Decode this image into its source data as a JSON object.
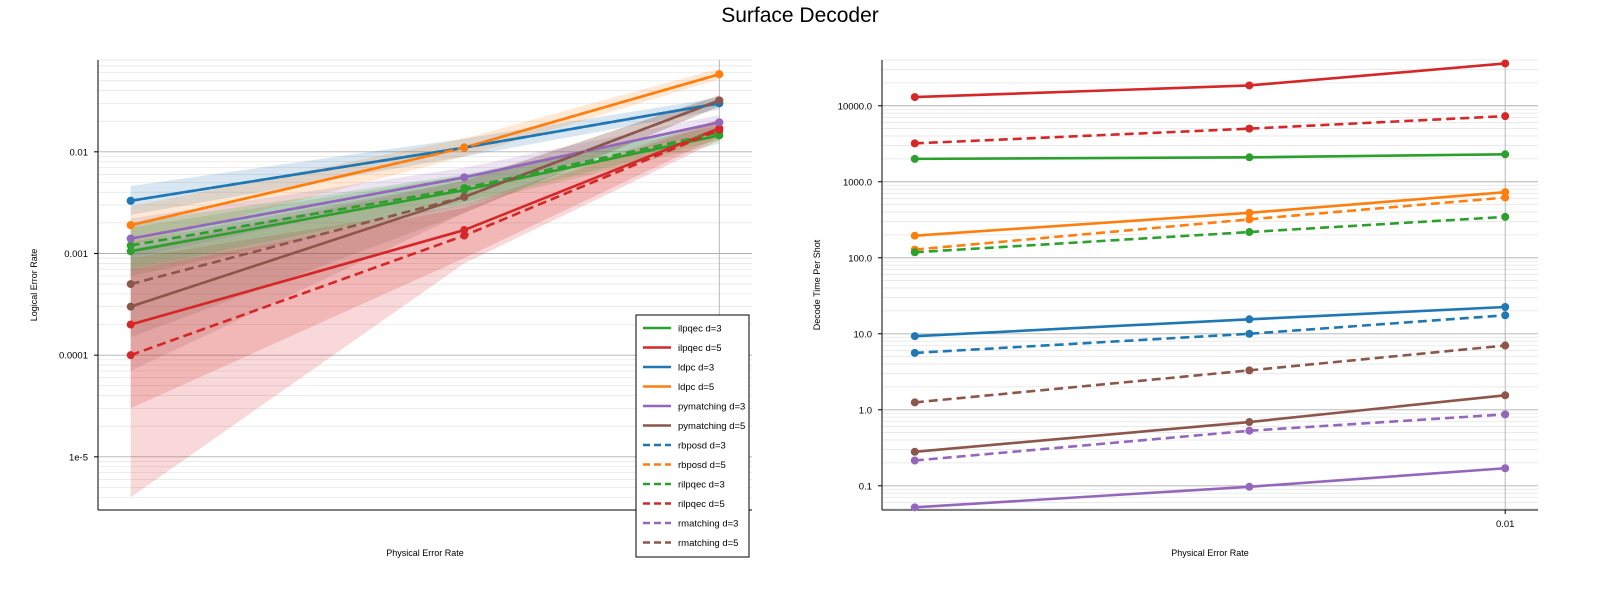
{
  "figure_title": "Surface Decoder",
  "colors": {
    "ilpqec": "#2ca02c",
    "ldpc": "#1f77b4",
    "ldpc_d5": "#ff7f0e",
    "ilpqec_d5": "#d62728",
    "pymatching": "#9467bd",
    "pymatching_d5": "#8c564b"
  },
  "chart_data": [
    {
      "type": "line",
      "title": "",
      "xlabel": "Physical Error Rate",
      "ylabel": "Logical Error Rate",
      "x": [
        0.005,
        0.007,
        0.01
      ],
      "x_tick_labels": [
        "0.01"
      ],
      "x_tick_values": [
        0.01
      ],
      "y_scale": "log",
      "ylim": [
        3e-06,
        0.08
      ],
      "y_tick_values": [
        0.01,
        0.001,
        0.0001,
        1e-05
      ],
      "y_tick_labels": [
        "0.01",
        "0.001",
        "0.0001",
        "1e-5"
      ],
      "grid": true,
      "legend_position": "lower-right",
      "series": [
        {
          "name": "ilpqec d=3",
          "color": "#2ca02c",
          "dash": false,
          "values": [
            0.00105,
            0.0042,
            0.0145
          ],
          "band": [
            [
              0.0006,
              0.0018
            ],
            [
              0.003,
              0.0058
            ],
            [
              0.012,
              0.018
            ]
          ]
        },
        {
          "name": "ilpqec d=5",
          "color": "#d62728",
          "dash": false,
          "values": [
            0.0002,
            0.0017,
            0.017
          ],
          "band": [
            [
              3e-05,
              0.0009
            ],
            [
              0.0009,
              0.003
            ],
            [
              0.014,
              0.021
            ]
          ]
        },
        {
          "name": "ldpc d=3",
          "color": "#1f77b4",
          "dash": false,
          "values": [
            0.0033,
            0.011,
            0.03
          ],
          "band": [
            [
              0.0024,
              0.0046
            ],
            [
              0.009,
              0.0135
            ],
            [
              0.026,
              0.034
            ]
          ]
        },
        {
          "name": "ldpc d=5",
          "color": "#ff7f0e",
          "dash": false,
          "values": [
            0.0019,
            0.011,
            0.058
          ],
          "band": [
            [
              0.0012,
              0.0029
            ],
            [
              0.009,
              0.0135
            ],
            [
              0.052,
              0.066
            ]
          ]
        },
        {
          "name": "pymatching d=3",
          "color": "#9467bd",
          "dash": false,
          "values": [
            0.0014,
            0.0056,
            0.0195
          ],
          "band": [
            [
              0.0009,
              0.0022
            ],
            [
              0.0045,
              0.007
            ],
            [
              0.016,
              0.023
            ]
          ]
        },
        {
          "name": "pymatching d=5",
          "color": "#8c564b",
          "dash": false,
          "values": [
            0.0003,
            0.0036,
            0.032
          ],
          "band": [
            [
              7e-05,
              0.0011
            ],
            [
              0.0025,
              0.0052
            ],
            [
              0.028,
              0.036
            ]
          ]
        },
        {
          "name": "rbposd d=3",
          "color": "#1f77b4",
          "dash": true,
          "values": [
            0.0033,
            0.011,
            0.03
          ]
        },
        {
          "name": "rbposd d=5",
          "color": "#ff7f0e",
          "dash": true,
          "values": [
            0.0019,
            0.011,
            0.058
          ]
        },
        {
          "name": "rilpqec d=3",
          "color": "#2ca02c",
          "dash": true,
          "values": [
            0.0012,
            0.0044,
            0.0155
          ],
          "band": [
            [
              0.0007,
              0.002
            ],
            [
              0.0032,
              0.006
            ],
            [
              0.013,
              0.019
            ]
          ]
        },
        {
          "name": "rilpqec d=5",
          "color": "#d62728",
          "dash": true,
          "values": [
            0.0001,
            0.0015,
            0.0165
          ],
          "band": [
            [
              4e-06,
              0.0007
            ],
            [
              0.0008,
              0.0028
            ],
            [
              0.013,
              0.02
            ]
          ]
        },
        {
          "name": "rmatching d=3",
          "color": "#9467bd",
          "dash": true,
          "values": [
            0.0014,
            0.0056,
            0.0195
          ]
        },
        {
          "name": "rmatching d=5",
          "color": "#8c564b",
          "dash": true,
          "values": [
            0.0005,
            0.0036,
            0.032
          ],
          "band": [
            [
              0.00015,
              0.0013
            ],
            [
              0.0025,
              0.0052
            ],
            [
              0.028,
              0.036
            ]
          ]
        }
      ]
    },
    {
      "type": "line",
      "title": "",
      "xlabel": "Physical Error Rate",
      "ylabel": "Decode Time Per Shot",
      "x": [
        0.005,
        0.007,
        0.01
      ],
      "x_tick_labels": [
        "0.01"
      ],
      "x_tick_values": [
        0.01
      ],
      "y_scale": "log",
      "ylim": [
        0.048,
        40000
      ],
      "y_tick_values": [
        10000,
        1000,
        100,
        10,
        1,
        0.1
      ],
      "y_tick_labels": [
        "10000.0",
        "1000.0",
        "100.0",
        "10.0",
        "1.0",
        "0.1"
      ],
      "grid": true,
      "legend_position": "none",
      "series": [
        {
          "name": "ilpqec d=3",
          "color": "#2ca02c",
          "dash": false,
          "values": [
            2000,
            2100,
            2300
          ]
        },
        {
          "name": "ilpqec d=5",
          "color": "#d62728",
          "dash": false,
          "values": [
            13000,
            18500,
            36000
          ]
        },
        {
          "name": "ldpc d=3",
          "color": "#1f77b4",
          "dash": false,
          "values": [
            9.3,
            15.5,
            22.5
          ]
        },
        {
          "name": "ldpc d=5",
          "color": "#ff7f0e",
          "dash": false,
          "values": [
            195,
            390,
            730
          ]
        },
        {
          "name": "pymatching d=3",
          "color": "#9467bd",
          "dash": false,
          "values": [
            0.052,
            0.097,
            0.17
          ]
        },
        {
          "name": "pymatching d=5",
          "color": "#8c564b",
          "dash": false,
          "values": [
            0.28,
            0.69,
            1.55
          ]
        },
        {
          "name": "rbposd d=3",
          "color": "#1f77b4",
          "dash": true,
          "values": [
            5.6,
            10,
            17.5
          ]
        },
        {
          "name": "rbposd d=5",
          "color": "#ff7f0e",
          "dash": true,
          "values": [
            128,
            320,
            620
          ]
        },
        {
          "name": "rilpqec d=3",
          "color": "#2ca02c",
          "dash": true,
          "values": [
            118,
            218,
            345
          ]
        },
        {
          "name": "rilpqec d=5",
          "color": "#d62728",
          "dash": true,
          "values": [
            3200,
            5000,
            7300
          ]
        },
        {
          "name": "rmatching d=3",
          "color": "#9467bd",
          "dash": true,
          "values": [
            0.215,
            0.53,
            0.87
          ]
        },
        {
          "name": "rmatching d=5",
          "color": "#8c564b",
          "dash": true,
          "values": [
            1.25,
            3.3,
            7
          ]
        }
      ]
    }
  ]
}
